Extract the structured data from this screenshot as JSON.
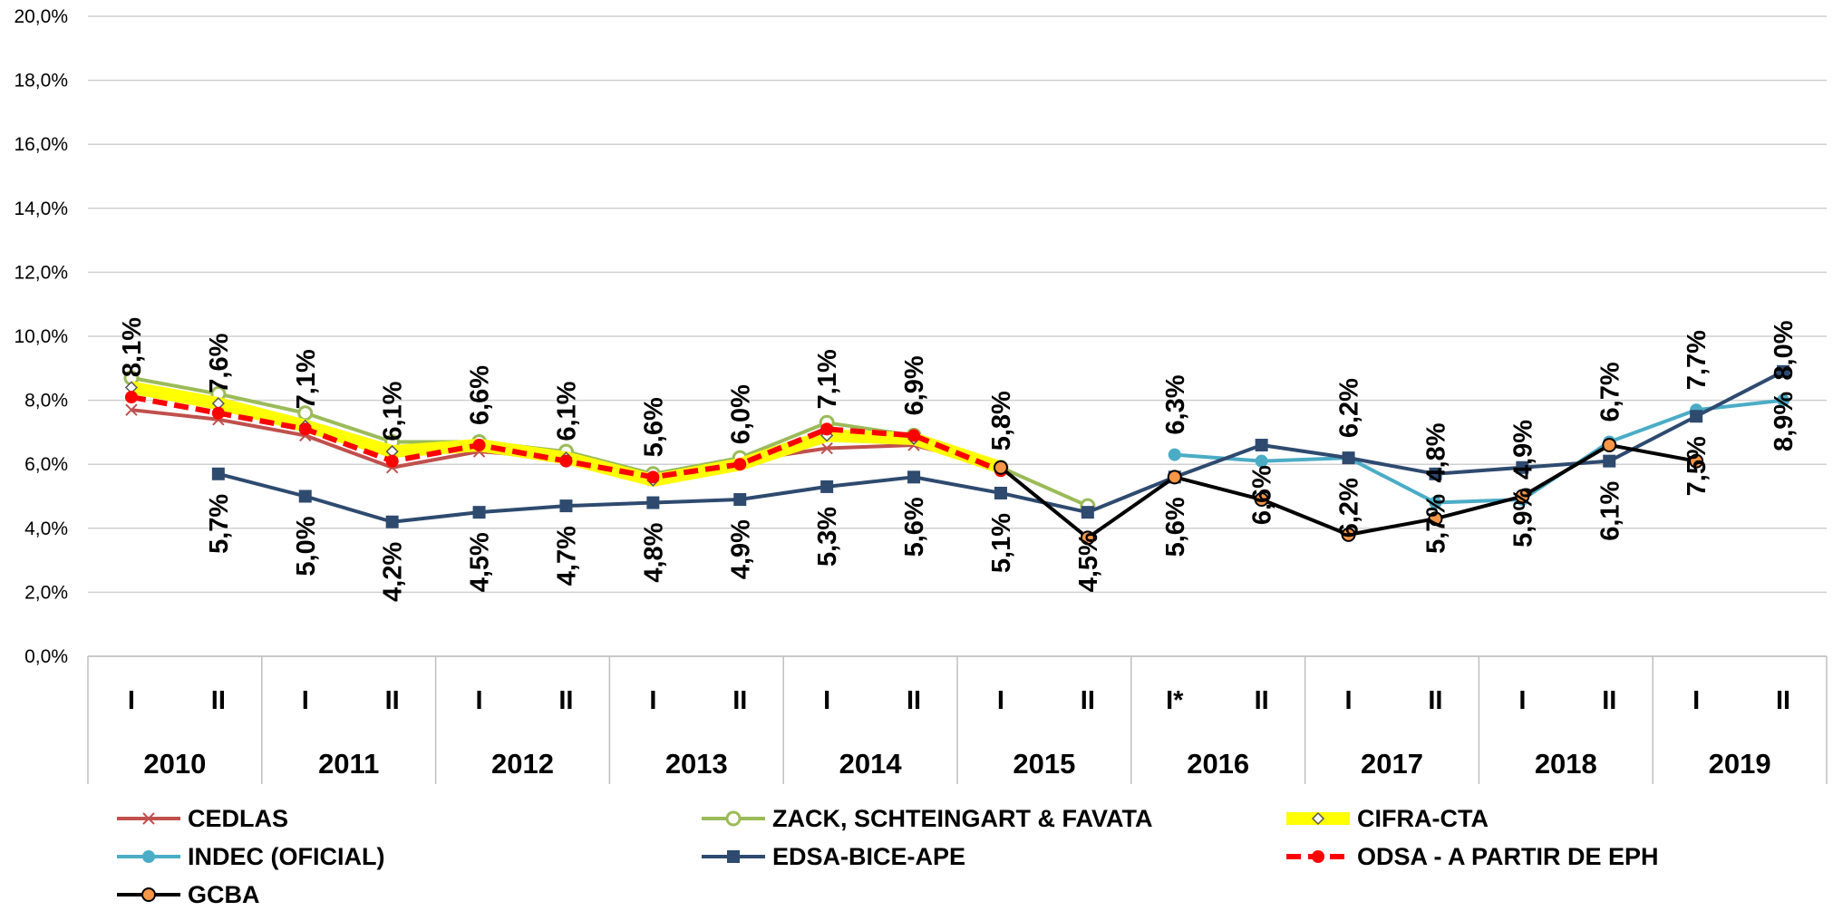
{
  "chart_data": {
    "type": "line",
    "categories": [
      "I",
      "II",
      "I",
      "II",
      "I",
      "II",
      "I",
      "II",
      "I",
      "II",
      "I",
      "II",
      "I*",
      "II",
      "I",
      "II",
      "I",
      "II",
      "I",
      "II"
    ],
    "x_groups": [
      "2010",
      "2011",
      "2012",
      "2013",
      "2014",
      "2015",
      "2016",
      "2017",
      "2018",
      "2019"
    ],
    "ylim": [
      0,
      20
    ],
    "yticks": [
      {
        "value": 0,
        "label": "0,0%"
      },
      {
        "value": 2,
        "label": "2,0%"
      },
      {
        "value": 4,
        "label": "4,0%"
      },
      {
        "value": 6,
        "label": "6,0%"
      },
      {
        "value": 8,
        "label": "8,0%"
      },
      {
        "value": 10,
        "label": "10,0%"
      },
      {
        "value": 12,
        "label": "12,0%"
      },
      {
        "value": 14,
        "label": "14,0%"
      },
      {
        "value": 16,
        "label": "16,0%"
      },
      {
        "value": 18,
        "label": "18,0%"
      },
      {
        "value": 20,
        "label": "20,0%"
      }
    ],
    "grid": true,
    "legend": "bottom",
    "series": [
      {
        "name": "CEDLAS",
        "color": "#c0504d",
        "marker": "x",
        "values": [
          7.7,
          7.4,
          6.9,
          5.9,
          6.4,
          6.2,
          5.5,
          6.1,
          6.5,
          6.6,
          5.9,
          null,
          null,
          null,
          null,
          null,
          null,
          null,
          null,
          null
        ]
      },
      {
        "name": "ZACK, SCHTEINGART & FAVATA",
        "color": "#9bbb59",
        "marker": "circle-open",
        "values": [
          8.7,
          8.2,
          7.6,
          6.7,
          6.7,
          6.4,
          5.7,
          6.2,
          7.3,
          6.9,
          5.9,
          4.7,
          null,
          null,
          null,
          null,
          null,
          null,
          null,
          null
        ]
      },
      {
        "name": "CIFRA-CTA",
        "color": "#ffff00",
        "marker": "diamond",
        "width": "thick",
        "values": [
          8.4,
          7.9,
          7.2,
          6.4,
          6.6,
          6.2,
          5.5,
          6.0,
          6.9,
          6.8,
          5.9,
          null,
          null,
          null,
          null,
          null,
          null,
          null,
          null,
          null
        ]
      },
      {
        "name": "INDEC (OFICIAL)",
        "color": "#4bacc6",
        "marker": "circle",
        "values": [
          null,
          null,
          null,
          null,
          null,
          null,
          null,
          null,
          null,
          null,
          null,
          null,
          6.3,
          6.1,
          6.2,
          4.8,
          4.9,
          6.7,
          7.7,
          8.0
        ],
        "value_labels": [
          null,
          null,
          null,
          null,
          null,
          null,
          null,
          null,
          null,
          null,
          null,
          null,
          "6,3%",
          null,
          "6,2%",
          "4,8%",
          "4,9%",
          "6,7%",
          "7,7%",
          "8,0%"
        ]
      },
      {
        "name": "EDSA-BICE-APE",
        "color": "#2e4a6f",
        "marker": "square",
        "values": [
          null,
          5.7,
          5.0,
          4.2,
          4.5,
          4.7,
          4.8,
          4.9,
          5.3,
          5.6,
          5.1,
          4.5,
          5.6,
          6.6,
          6.2,
          5.7,
          5.9,
          6.1,
          7.5,
          8.9
        ],
        "value_labels": [
          null,
          "5,7%",
          "5,0%",
          "4,2%",
          "4,5%",
          "4,7%",
          "4,8%",
          "4,9%",
          "5,3%",
          "5,6%",
          "5,1%",
          "4,5%",
          "5,6%",
          "6,6%",
          "6,2%",
          "5,7%",
          "5,9%",
          "6,1%",
          "7,5%",
          "8,9%"
        ]
      },
      {
        "name": "ODSA - A PARTIR DE EPH",
        "color": "#ff0000",
        "marker": "circle",
        "dash": true,
        "values": [
          8.1,
          7.6,
          7.1,
          6.1,
          6.6,
          6.1,
          5.6,
          6.0,
          7.1,
          6.9,
          5.8,
          null,
          null,
          null,
          null,
          null,
          null,
          null,
          null,
          null
        ],
        "value_labels": [
          "8,1%",
          "7,6%",
          "7,1%",
          "6,1%",
          "6,6%",
          "6,1%",
          "5,6%",
          "6,0%",
          "7,1%",
          "6,9%",
          "5,8%",
          null,
          null,
          null,
          null,
          null,
          null,
          null,
          null,
          null
        ]
      },
      {
        "name": "GCBA",
        "color": "#000000",
        "marker": "circle",
        "marker_color": "#f79646",
        "values": [
          null,
          null,
          null,
          null,
          null,
          null,
          null,
          null,
          null,
          null,
          5.9,
          3.7,
          5.6,
          4.9,
          3.8,
          4.3,
          5.0,
          6.6,
          6.1,
          null
        ]
      }
    ]
  }
}
